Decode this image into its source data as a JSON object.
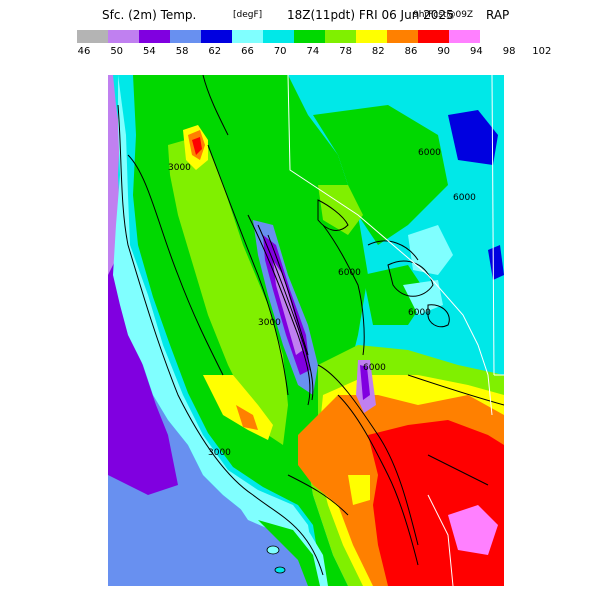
{
  "title": {
    "main": "Sfc. (2m) Temp.",
    "units": "[degF]",
    "time": "18Z(11pdt) FRI 06 Jun 2025",
    "forecast": "9hrFcst@09Z",
    "model": "RAP"
  },
  "colorbar": {
    "colors": [
      "#b4b4b4",
      "#c080f0",
      "#8000e0",
      "#6890f0",
      "#0000e0",
      "#80ffff",
      "#00e8e8",
      "#00d800",
      "#80f000",
      "#ffff00",
      "#ff8000",
      "#ff0000",
      "#ff80ff"
    ],
    "tick_labels": [
      "46",
      "50",
      "54",
      "58",
      "62",
      "66",
      "70",
      "74",
      "78",
      "82",
      "86",
      "90",
      "94",
      "98",
      "102"
    ]
  },
  "contour_labels": [
    "3000",
    "6000",
    "6000",
    "6000",
    "6000",
    "3000",
    "6000",
    "3000"
  ]
}
